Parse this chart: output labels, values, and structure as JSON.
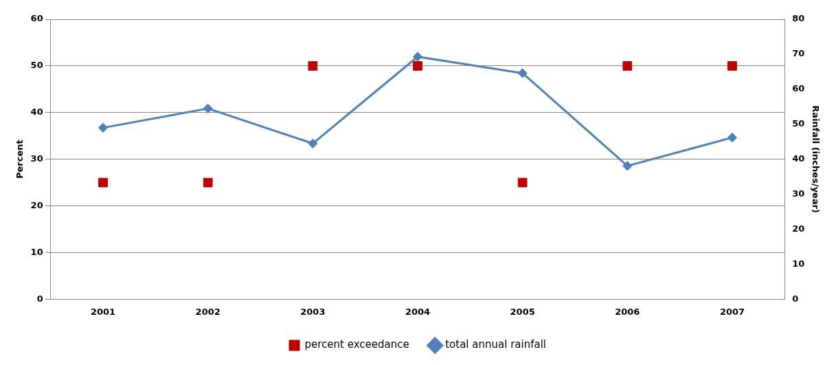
{
  "chart_data": {
    "type": "scatter",
    "ylabel": "Percent",
    "y2label": "Rainfall (inches/year)",
    "categories": [
      "2001",
      "2002",
      "2003",
      "2004",
      "2005",
      "2006",
      "2007"
    ],
    "series": [
      {
        "name": "percent exceedance",
        "color": "#c00000",
        "marker": "square",
        "values": [
          25,
          25,
          50,
          50,
          25,
          50,
          50
        ]
      },
      {
        "name": "total annual rainfall",
        "type": "line",
        "color": "#4f81bd",
        "marker": "diamond",
        "axis": "y2",
        "values": [
          49.0,
          54.5,
          44.5,
          69.3,
          64.6,
          38.1,
          46.2
        ]
      }
    ],
    "ylim": [
      0,
      60
    ],
    "yticks": [
      0,
      10,
      20,
      30,
      40,
      50,
      60
    ],
    "y2lim": [
      0,
      80
    ],
    "y2ticks": [
      0,
      10,
      20,
      30,
      40,
      50,
      60,
      70,
      80
    ],
    "grid": "y",
    "legend": "bottom"
  }
}
